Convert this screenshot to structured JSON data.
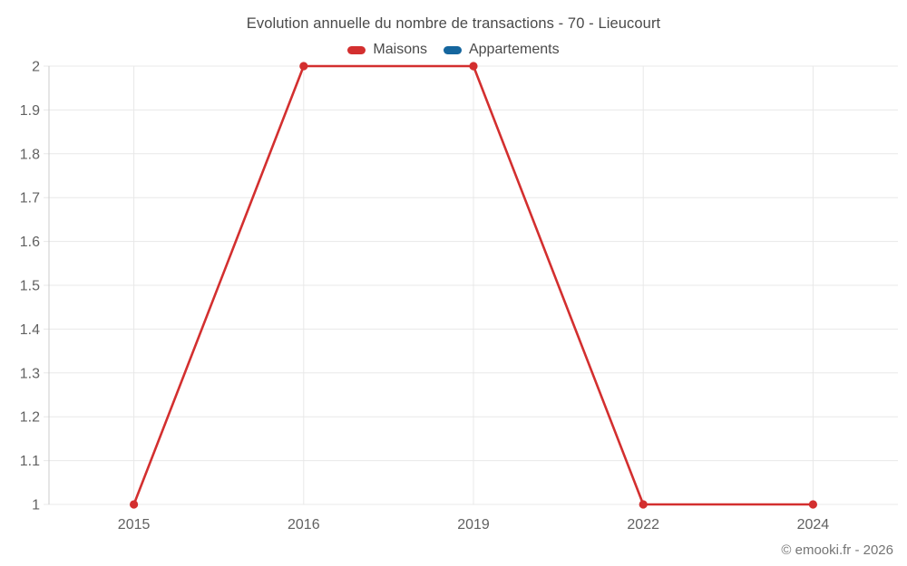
{
  "title": "Evolution annuelle du nombre de transactions - 70 - Lieucourt",
  "legend": [
    {
      "label": "Maisons",
      "color": "#d32f2f"
    },
    {
      "label": "Appartements",
      "color": "#15669e"
    }
  ],
  "copyright": "© emooki.fr - 2026",
  "colors": {
    "gridline": "#e8e8e8",
    "axis_line": "#cccccc",
    "tick_label": "#616161"
  },
  "chart_data": {
    "type": "line",
    "title": "Evolution annuelle du nombre de transactions - 70 - Lieucourt",
    "categories": [
      "2015",
      "2016",
      "2019",
      "2022",
      "2024"
    ],
    "series": [
      {
        "name": "Maisons",
        "color": "#d32f2f",
        "values": [
          1,
          2,
          2,
          1,
          1
        ]
      },
      {
        "name": "Appartements",
        "color": "#15669e",
        "values": []
      }
    ],
    "xlabel": "",
    "ylabel": "",
    "ylim": [
      1,
      2
    ],
    "ytick_step": 0.1,
    "grid": true,
    "legend_position": "top"
  }
}
